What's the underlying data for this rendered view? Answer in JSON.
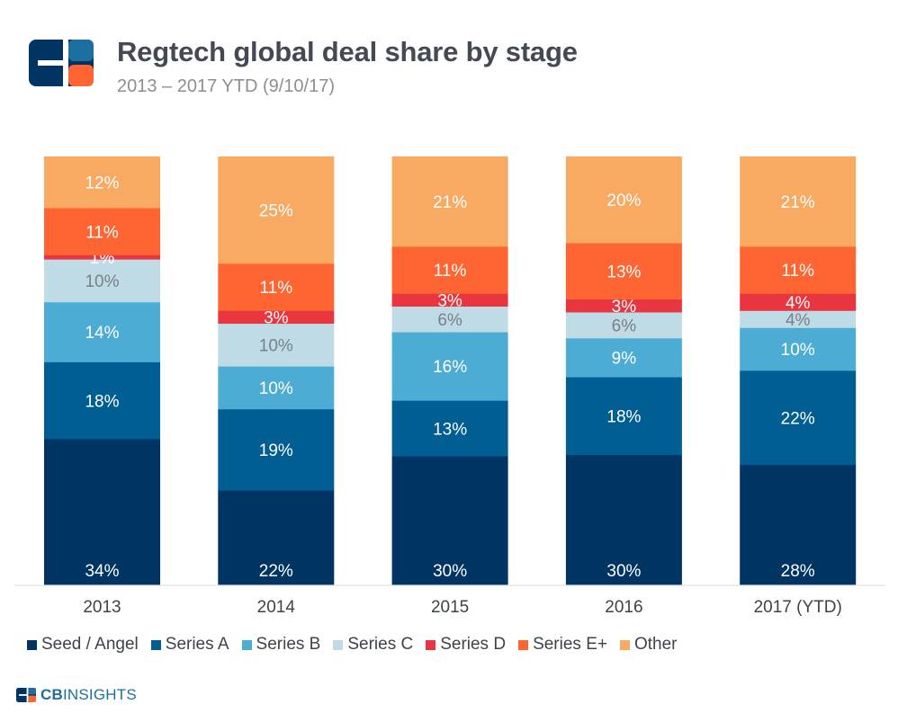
{
  "header": {
    "title": "Regtech global deal share by stage",
    "subtitle": "2013 – 2017 YTD (9/10/17)"
  },
  "brand": {
    "logo_icon": "cbinsights-logo-icon",
    "bold": "CB",
    "light": "INSIGHTS"
  },
  "colors": {
    "Seed / Angel": "#003463",
    "Series A": "#005e93",
    "Series B": "#4cacd3",
    "Series C": "#bedbe6",
    "Series D": "#e8353f",
    "Series E+": "#ff6532",
    "Other": "#f8a962"
  },
  "chart_data": {
    "type": "bar",
    "stacked": true,
    "categories": [
      "2013",
      "2014",
      "2015",
      "2016",
      "2017 (YTD)"
    ],
    "series": [
      {
        "name": "Seed / Angel",
        "values": [
          34,
          22,
          30,
          30,
          28
        ]
      },
      {
        "name": "Series A",
        "values": [
          18,
          19,
          13,
          18,
          22
        ]
      },
      {
        "name": "Series B",
        "values": [
          14,
          10,
          16,
          9,
          10
        ]
      },
      {
        "name": "Series C",
        "values": [
          10,
          10,
          6,
          6,
          4
        ]
      },
      {
        "name": "Series D",
        "values": [
          1,
          3,
          3,
          3,
          4
        ]
      },
      {
        "name": "Series E+",
        "values": [
          11,
          11,
          11,
          13,
          11
        ]
      },
      {
        "name": "Other",
        "values": [
          12,
          25,
          21,
          20,
          21
        ]
      }
    ],
    "unit": "%",
    "ylim": [
      0,
      100
    ],
    "grid": false,
    "legend_position": "bottom"
  }
}
